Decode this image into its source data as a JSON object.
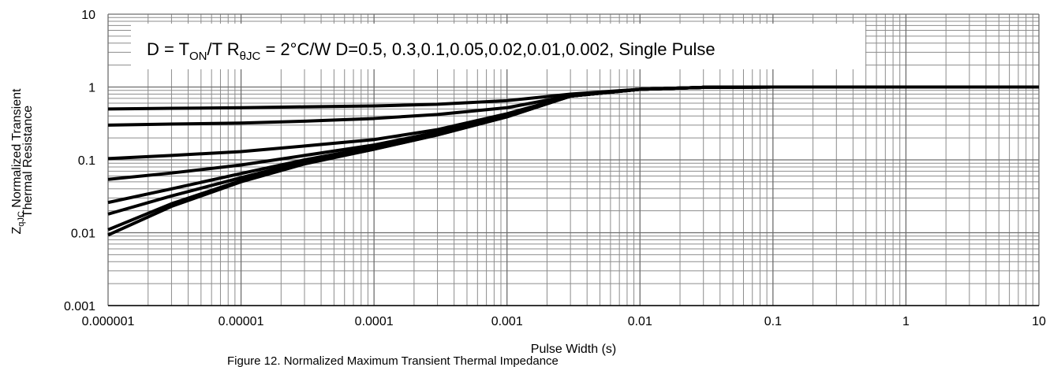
{
  "chart_data": {
    "type": "line",
    "annotation": [
      "D = T",
      "ON",
      "/T  R",
      "θJC",
      " = 2°C/W D=0.5, 0.3,0.1,0.05,0.02,0.01,0.002, Single Pulse"
    ],
    "y_label": [
      [
        "Z",
        "qJC",
        " Normalized Transient"
      ],
      [
        "Thermal Resistance"
      ]
    ],
    "x_label": "Pulse Width (s)",
    "caption": "Figure 12. Normalized Maximum Transient Thermal Impedance",
    "log_x": true,
    "log_y": true,
    "grid": true,
    "color": "#000000",
    "xlim": [
      1e-06,
      10
    ],
    "ylim": [
      0.001,
      10
    ],
    "xticks": [
      1e-06,
      1e-05,
      0.0001,
      0.001,
      0.01,
      0.1,
      1,
      10
    ],
    "yticks": [
      0.001,
      0.01,
      0.1,
      1,
      10
    ],
    "x": [
      1e-06,
      3e-06,
      1e-05,
      3e-05,
      0.0001,
      0.0003,
      0.001,
      0.003,
      0.01,
      0.03,
      0.1,
      1,
      10
    ],
    "series": [
      {
        "values": [
          0.5,
          0.51,
          0.52,
          0.535,
          0.55,
          0.58,
          0.65,
          0.8,
          0.93,
          0.99,
          1,
          1,
          1
        ]
      },
      {
        "values": [
          0.3,
          0.31,
          0.32,
          0.34,
          0.37,
          0.42,
          0.52,
          0.76,
          0.93,
          0.99,
          1,
          1,
          1
        ]
      },
      {
        "values": [
          0.104,
          0.115,
          0.13,
          0.155,
          0.19,
          0.26,
          0.43,
          0.75,
          0.93,
          0.99,
          1,
          1,
          1
        ]
      },
      {
        "values": [
          0.054,
          0.066,
          0.085,
          0.115,
          0.16,
          0.24,
          0.41,
          0.75,
          0.93,
          0.99,
          1,
          1,
          1
        ]
      },
      {
        "values": [
          0.026,
          0.04,
          0.065,
          0.1,
          0.15,
          0.23,
          0.4,
          0.75,
          0.93,
          0.99,
          1,
          1,
          1
        ]
      },
      {
        "values": [
          0.018,
          0.032,
          0.057,
          0.094,
          0.145,
          0.225,
          0.4,
          0.75,
          0.93,
          0.99,
          1,
          1,
          1
        ]
      },
      {
        "values": [
          0.011,
          0.025,
          0.052,
          0.09,
          0.14,
          0.22,
          0.39,
          0.75,
          0.93,
          0.99,
          1,
          1,
          1
        ]
      },
      {
        "values": [
          0.0093,
          0.023,
          0.05,
          0.088,
          0.14,
          0.22,
          0.39,
          0.75,
          0.93,
          0.99,
          1,
          1,
          1
        ]
      }
    ]
  }
}
